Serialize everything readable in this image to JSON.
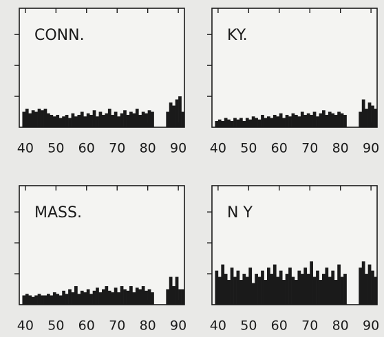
{
  "chart_data": [
    {
      "type": "bar",
      "title": "CONN.",
      "color": "#1a1a1a",
      "x": [
        39,
        40,
        41,
        42,
        43,
        44,
        45,
        46,
        47,
        48,
        49,
        50,
        51,
        52,
        53,
        54,
        55,
        56,
        57,
        58,
        59,
        60,
        61,
        62,
        63,
        64,
        65,
        66,
        67,
        68,
        69,
        70,
        71,
        72,
        73,
        74,
        75,
        76,
        77,
        78,
        79,
        80,
        81,
        82,
        83,
        84,
        85,
        86,
        87,
        88,
        89,
        90,
        91
      ],
      "values": [
        0.5,
        0.6,
        0.45,
        0.55,
        0.5,
        0.6,
        0.55,
        0.6,
        0.45,
        0.4,
        0.35,
        0.4,
        0.3,
        0.35,
        0.4,
        0.3,
        0.45,
        0.35,
        0.4,
        0.5,
        0.35,
        0.45,
        0.4,
        0.55,
        0.35,
        0.5,
        0.4,
        0.45,
        0.6,
        0.4,
        0.5,
        0.35,
        0.45,
        0.55,
        0.4,
        0.5,
        0.45,
        0.6,
        0.4,
        0.5,
        0.45,
        0.55,
        0.5,
        null,
        null,
        null,
        null,
        0.5,
        0.8,
        0.7,
        0.9,
        1.0,
        0.5
      ],
      "xlim": [
        38,
        92
      ],
      "xticks": [
        40,
        50,
        60,
        70,
        80,
        90
      ],
      "ylim": [
        0,
        3.85
      ],
      "yticks": [
        1,
        2,
        3
      ]
    },
    {
      "type": "bar",
      "title": "KY.",
      "color": "#1a1a1a",
      "x": [
        39,
        40,
        41,
        42,
        43,
        44,
        45,
        46,
        47,
        48,
        49,
        50,
        51,
        52,
        53,
        54,
        55,
        56,
        57,
        58,
        59,
        60,
        61,
        62,
        63,
        64,
        65,
        66,
        67,
        68,
        69,
        70,
        71,
        72,
        73,
        74,
        75,
        76,
        77,
        78,
        79,
        80,
        81,
        82,
        83,
        84,
        85,
        86,
        87,
        88,
        89,
        90,
        91
      ],
      "values": [
        0.2,
        0.25,
        0.2,
        0.3,
        0.25,
        0.2,
        0.3,
        0.25,
        0.3,
        0.2,
        0.3,
        0.25,
        0.35,
        0.3,
        0.25,
        0.4,
        0.3,
        0.35,
        0.3,
        0.4,
        0.35,
        0.45,
        0.3,
        0.4,
        0.35,
        0.45,
        0.4,
        0.35,
        0.5,
        0.4,
        0.45,
        0.4,
        0.5,
        0.35,
        0.45,
        0.55,
        0.4,
        0.5,
        0.45,
        0.4,
        0.5,
        0.45,
        0.4,
        null,
        null,
        null,
        null,
        0.5,
        0.9,
        0.6,
        0.8,
        0.7,
        0.6
      ],
      "xlim": [
        38,
        92
      ],
      "xticks": [
        40,
        50,
        60,
        70,
        80,
        90
      ],
      "ylim": [
        0,
        3.85
      ],
      "yticks": [
        1,
        2,
        3
      ]
    },
    {
      "type": "bar",
      "title": "MASS.",
      "color": "#1a1a1a",
      "x": [
        39,
        40,
        41,
        42,
        43,
        44,
        45,
        46,
        47,
        48,
        49,
        50,
        51,
        52,
        53,
        54,
        55,
        56,
        57,
        58,
        59,
        60,
        61,
        62,
        63,
        64,
        65,
        66,
        67,
        68,
        69,
        70,
        71,
        72,
        73,
        74,
        75,
        76,
        77,
        78,
        79,
        80,
        81,
        82,
        83,
        84,
        85,
        86,
        87,
        88,
        89,
        90,
        91
      ],
      "values": [
        0.3,
        0.35,
        0.3,
        0.25,
        0.3,
        0.35,
        0.3,
        0.3,
        0.35,
        0.3,
        0.4,
        0.35,
        0.3,
        0.45,
        0.35,
        0.5,
        0.4,
        0.6,
        0.35,
        0.45,
        0.4,
        0.5,
        0.35,
        0.45,
        0.55,
        0.4,
        0.5,
        0.6,
        0.45,
        0.4,
        0.55,
        0.4,
        0.6,
        0.5,
        0.45,
        0.6,
        0.4,
        0.55,
        0.5,
        0.6,
        0.45,
        0.5,
        0.4,
        null,
        null,
        null,
        null,
        0.5,
        0.9,
        0.6,
        0.9,
        0.5,
        0.5
      ],
      "xlim": [
        38,
        92
      ],
      "xticks": [
        40,
        50,
        60,
        70,
        80,
        90
      ],
      "ylim": [
        0,
        3.85
      ],
      "yticks": [
        1,
        2,
        3
      ]
    },
    {
      "type": "bar",
      "title": "N Y",
      "color": "#1a1a1a",
      "x": [
        39,
        40,
        41,
        42,
        43,
        44,
        45,
        46,
        47,
        48,
        49,
        50,
        51,
        52,
        53,
        54,
        55,
        56,
        57,
        58,
        59,
        60,
        61,
        62,
        63,
        64,
        65,
        66,
        67,
        68,
        69,
        70,
        71,
        72,
        73,
        74,
        75,
        76,
        77,
        78,
        79,
        80,
        81,
        82,
        83,
        84,
        85,
        86,
        87,
        88,
        89,
        90,
        91
      ],
      "values": [
        1.1,
        0.9,
        1.3,
        1.0,
        0.8,
        1.2,
        0.9,
        1.1,
        0.8,
        1.0,
        0.9,
        1.2,
        0.7,
        1.0,
        0.9,
        1.1,
        0.8,
        1.2,
        1.0,
        1.3,
        0.9,
        1.1,
        0.8,
        1.0,
        1.2,
        0.9,
        0.8,
        1.1,
        1.0,
        1.2,
        1.0,
        1.4,
        0.9,
        1.1,
        0.8,
        1.0,
        1.2,
        0.9,
        1.1,
        0.8,
        1.3,
        0.9,
        1.0,
        null,
        null,
        null,
        null,
        1.2,
        1.4,
        1.0,
        1.3,
        1.1,
        0.9
      ],
      "xlim": [
        38,
        92
      ],
      "xticks": [
        40,
        50,
        60,
        70,
        80,
        90
      ],
      "ylim": [
        0,
        3.85
      ],
      "yticks": [
        1,
        2,
        3
      ]
    }
  ]
}
